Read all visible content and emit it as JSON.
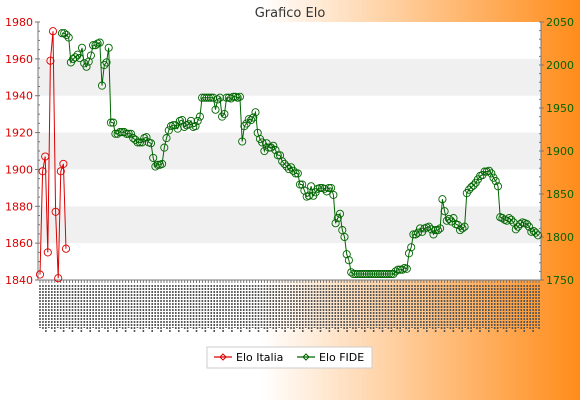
{
  "colors": {
    "background_left": "#ffffff",
    "background_right": "#ff8c1a",
    "band": "#f0f0f0",
    "italia": "#dd0000",
    "fide": "#006600",
    "axis": "#777777"
  },
  "chart_data": {
    "type": "line",
    "title": "Grafico Elo",
    "ylim_left": [
      1840,
      1980
    ],
    "ylim_right": [
      1750,
      2050
    ],
    "yticks_left": [
      "1840",
      "1860",
      "1880",
      "1900",
      "1920",
      "1940",
      "1960",
      "1980"
    ],
    "yticks_right": [
      "1750",
      "1800",
      "1850",
      "1900",
      "1950",
      "2000",
      "2050"
    ],
    "x_tick_note": "x-axis date labels are rotated and overlapping, unreadable",
    "legend_position": "bottom",
    "grid_bands": true,
    "series": [
      {
        "name": "Elo Italia",
        "axis": "left",
        "color": "#dd0000",
        "values": [
          1843,
          1899,
          1907,
          1855,
          1959,
          1975,
          1877,
          1841,
          1899,
          1903,
          1857
        ]
      },
      {
        "name": "Elo FIDE",
        "axis": "right",
        "color": "#006600",
        "values": [
          2037,
          2037,
          2035,
          2032,
          2003,
          2007,
          2009,
          2012,
          2008,
          2020,
          2002,
          1998,
          2004,
          2011,
          2023,
          2023,
          2025,
          2026,
          1976,
          2000,
          2003,
          2020,
          1933,
          1933,
          1920,
          1920,
          1922,
          1922,
          1922,
          1920,
          1920,
          1920,
          1915,
          1913,
          1910,
          1910,
          1910,
          1915,
          1916,
          1910,
          1909,
          1892,
          1882,
          1884,
          1884,
          1885,
          1904,
          1915,
          1924,
          1929,
          1930,
          1930,
          1926,
          1935,
          1936,
          1928,
          1930,
          1931,
          1935,
          1928,
          1929,
          1935,
          1940,
          1962,
          1962,
          1962,
          1962,
          1962,
          1962,
          1948,
          1960,
          1962,
          1940,
          1943,
          1962,
          1962,
          1961,
          1963,
          1963,
          1962,
          1963,
          1911,
          1929,
          1932,
          1937,
          1936,
          1939,
          1945,
          1921,
          1914,
          1910,
          1900,
          1909,
          1904,
          1904,
          1906,
          1901,
          1895,
          1895,
          1888,
          1885,
          1882,
          1879,
          1881,
          1877,
          1874,
          1874,
          1861,
          1861,
          1854,
          1847,
          1848,
          1859,
          1848,
          1852,
          1856,
          1857,
          1857,
          1856,
          1853,
          1857,
          1857,
          1849,
          1816,
          1822,
          1827,
          1808,
          1800,
          1780,
          1773,
          1759,
          1757,
          1757,
          1757,
          1757,
          1757,
          1757,
          1757,
          1757,
          1757,
          1757,
          1757,
          1757,
          1757,
          1757,
          1757,
          1757,
          1757,
          1757,
          1757,
          1760,
          1762,
          1762,
          1762,
          1764,
          1763,
          1781,
          1788,
          1803,
          1803,
          1805,
          1810,
          1806,
          1810,
          1811,
          1812,
          1809,
          1803,
          1808,
          1808,
          1810,
          1844,
          1830,
          1819,
          1821,
          1818,
          1822,
          1815,
          1814,
          1808,
          1810,
          1812,
          1851,
          1855,
          1858,
          1860,
          1863,
          1867,
          1871,
          1872,
          1876,
          1876,
          1877,
          1874,
          1869,
          1865,
          1859,
          1823,
          1822,
          1820,
          1819,
          1822,
          1820,
          1817,
          1809,
          1812,
          1815,
          1817,
          1816,
          1815,
          1812,
          1806,
          1807,
          1805,
          1802
        ]
      }
    ]
  }
}
